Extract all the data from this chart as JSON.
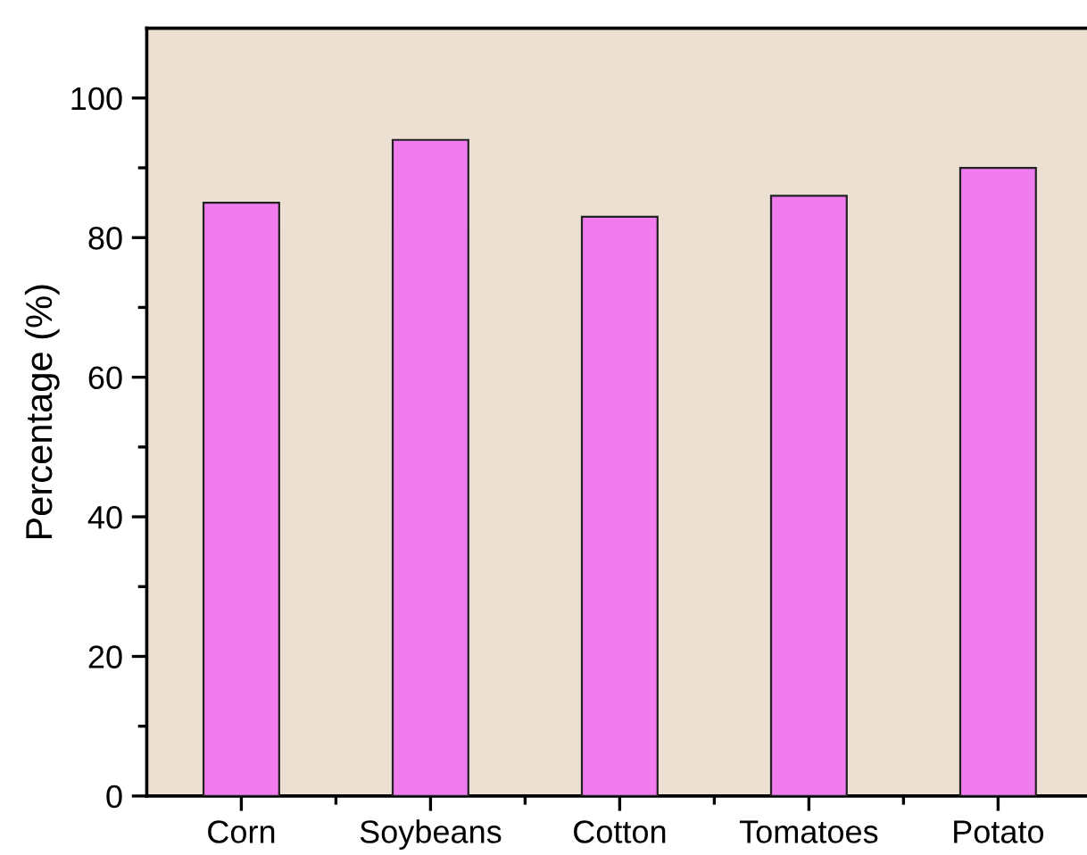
{
  "chart_data": {
    "type": "bar",
    "ylabel": "Percentage (%)",
    "categories": [
      "Corn",
      "Soybeans",
      "Cotton",
      "Tomatoes",
      "Potato"
    ],
    "values": [
      85,
      94,
      83,
      86,
      90
    ],
    "color": "#f07cf0",
    "ylim": [
      0,
      110
    ],
    "yticks": [
      0,
      20,
      40,
      60,
      80,
      100
    ],
    "grid": false,
    "legend": false
  }
}
